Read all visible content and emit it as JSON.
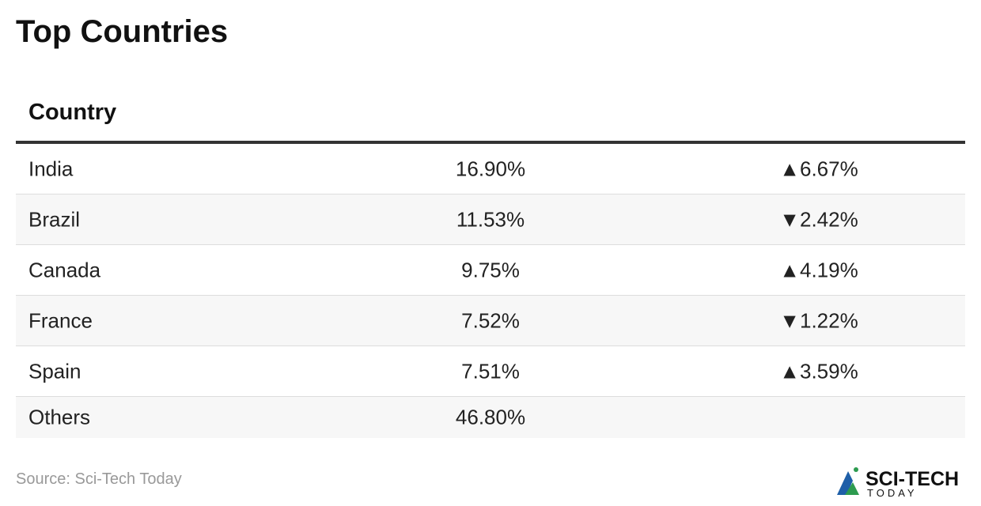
{
  "header": {
    "title": "Top Countries"
  },
  "table": {
    "columns": [
      "Country"
    ],
    "rows": [
      [
        "India",
        "16.90%",
        "▲6.67%"
      ],
      [
        "Brazil",
        "11.53%",
        "▼2.42%"
      ],
      [
        "Canada",
        "9.75%",
        "▲4.19%"
      ],
      [
        "France",
        "7.52%",
        "▼1.22%"
      ],
      [
        "Spain",
        "7.51%",
        "▲3.59%"
      ],
      [
        "Others",
        "46.80%"
      ]
    ]
  },
  "footer": {
    "source": "Source: Sci-Tech Today",
    "logo": {
      "name": "SCI-TECH",
      "tagline": "TODAY"
    }
  }
}
